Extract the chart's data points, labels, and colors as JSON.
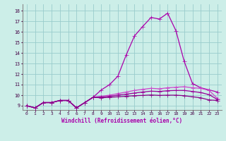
{
  "xlabel": "Windchill (Refroidissement éolien,°C)",
  "xlim": [
    -0.5,
    23.5
  ],
  "ylim": [
    8.6,
    18.6
  ],
  "xticks": [
    0,
    1,
    2,
    3,
    4,
    5,
    6,
    7,
    8,
    9,
    10,
    11,
    12,
    13,
    14,
    15,
    16,
    17,
    18,
    19,
    20,
    21,
    22,
    23
  ],
  "yticks": [
    9,
    10,
    11,
    12,
    13,
    14,
    15,
    16,
    17,
    18
  ],
  "background_color": "#cceee8",
  "grid_color": "#99cccc",
  "line_color1": "#aa00aa",
  "line_color2": "#cc44cc",
  "line_color3": "#990099",
  "line_color4": "#880088",
  "series1": [
    9.0,
    8.8,
    9.3,
    9.3,
    9.5,
    9.5,
    8.8,
    9.3,
    9.8,
    10.5,
    11.0,
    11.8,
    13.8,
    15.6,
    16.5,
    17.35,
    17.2,
    17.75,
    16.1,
    13.2,
    11.1,
    10.7,
    10.5,
    10.3
  ],
  "series2": [
    9.0,
    8.8,
    9.3,
    9.3,
    9.5,
    9.5,
    8.8,
    9.3,
    9.8,
    9.9,
    10.0,
    10.15,
    10.3,
    10.45,
    10.55,
    10.65,
    10.6,
    10.7,
    10.75,
    10.8,
    10.7,
    10.65,
    10.45,
    9.7
  ],
  "series3": [
    9.0,
    8.8,
    9.3,
    9.3,
    9.5,
    9.5,
    8.8,
    9.3,
    9.8,
    9.82,
    9.9,
    10.0,
    10.1,
    10.2,
    10.3,
    10.38,
    10.35,
    10.42,
    10.45,
    10.45,
    10.35,
    10.25,
    10.05,
    9.6
  ],
  "series4": [
    9.0,
    8.8,
    9.3,
    9.3,
    9.5,
    9.5,
    8.8,
    9.3,
    9.8,
    9.75,
    9.8,
    9.85,
    9.9,
    9.95,
    9.98,
    10.02,
    9.98,
    10.0,
    10.0,
    9.95,
    9.85,
    9.75,
    9.55,
    9.5
  ]
}
